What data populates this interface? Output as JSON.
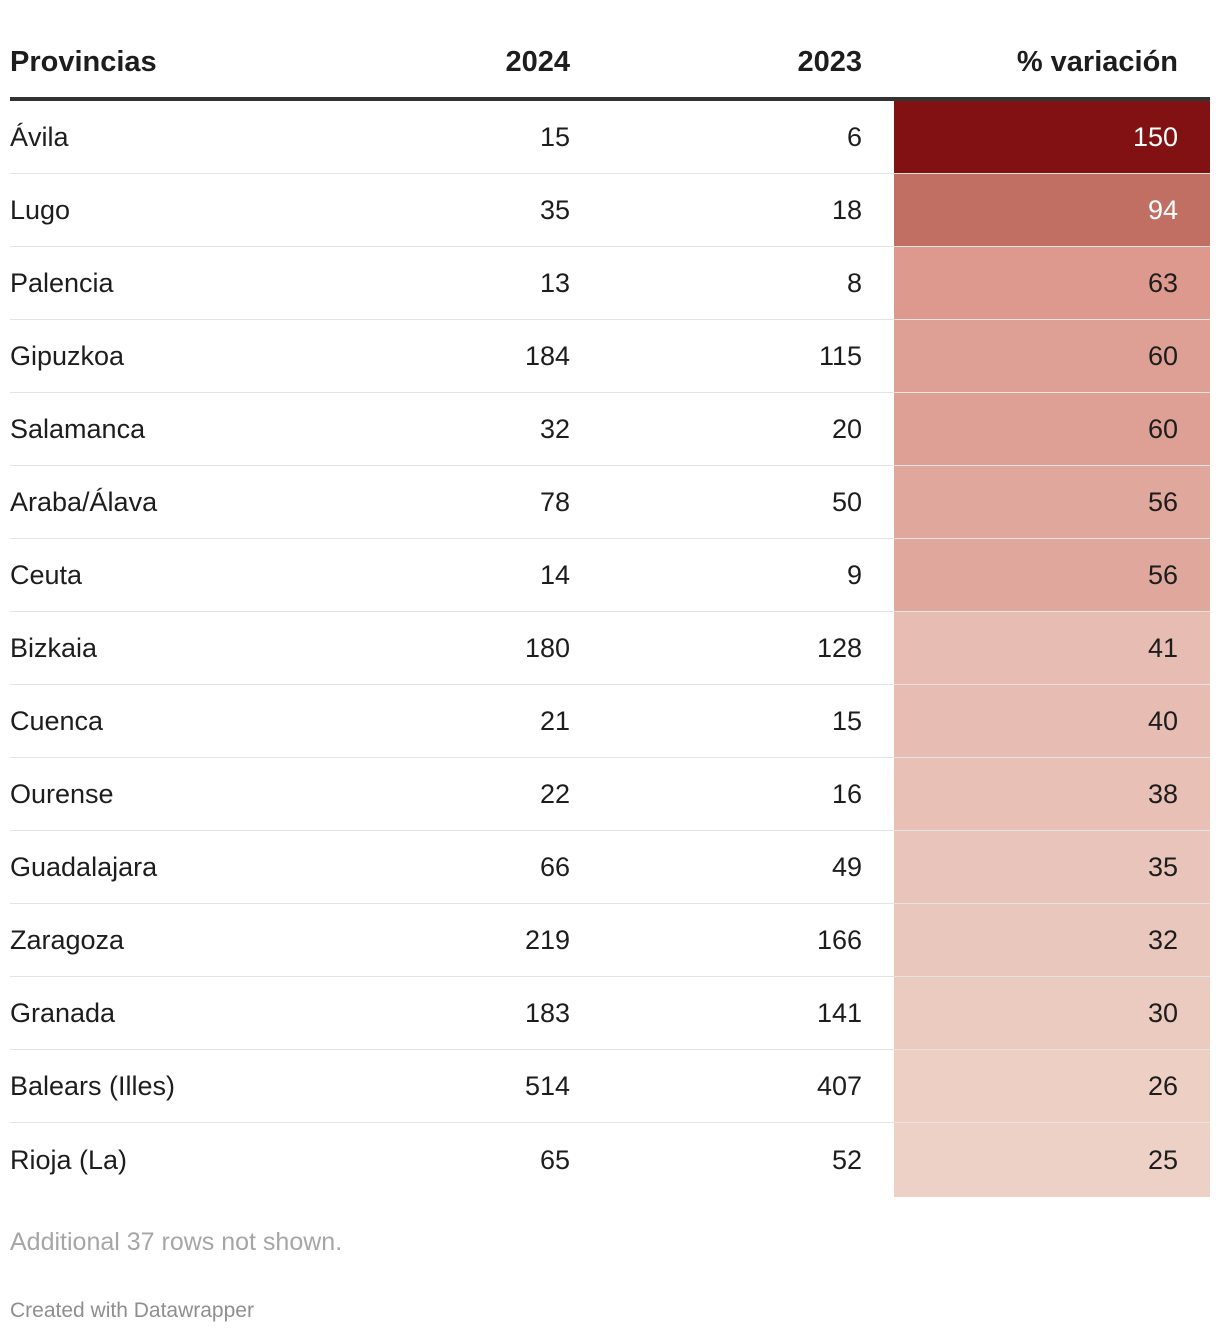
{
  "chart_data": {
    "type": "table",
    "columns": [
      "Provincias",
      "2024",
      "2023",
      "% variación"
    ],
    "rows": [
      {
        "name": "Ávila",
        "y2024": "15",
        "y2023": "6",
        "var": "150",
        "color": "#811112",
        "text_color": "#ffffff"
      },
      {
        "name": "Lugo",
        "y2024": "35",
        "y2023": "18",
        "var": "94",
        "color": "#c16f62",
        "text_color": "#ffffff"
      },
      {
        "name": "Palencia",
        "y2024": "13",
        "y2023": "8",
        "var": "63",
        "color": "#dd998e",
        "text_color": "#1d1d1d"
      },
      {
        "name": "Gipuzkoa",
        "y2024": "184",
        "y2023": "115",
        "var": "60",
        "color": "#de9f94",
        "text_color": "#1d1d1d"
      },
      {
        "name": "Salamanca",
        "y2024": "32",
        "y2023": "20",
        "var": "60",
        "color": "#de9f94",
        "text_color": "#1d1d1d"
      },
      {
        "name": "Araba/Álava",
        "y2024": "78",
        "y2023": "50",
        "var": "56",
        "color": "#e0a79c",
        "text_color": "#1d1d1d"
      },
      {
        "name": "Ceuta",
        "y2024": "14",
        "y2023": "9",
        "var": "56",
        "color": "#e0a79c",
        "text_color": "#1d1d1d"
      },
      {
        "name": "Bizkaia",
        "y2024": "180",
        "y2023": "128",
        "var": "41",
        "color": "#e7bcb2",
        "text_color": "#1d1d1d"
      },
      {
        "name": "Cuenca",
        "y2024": "21",
        "y2023": "15",
        "var": "40",
        "color": "#e7bdb3",
        "text_color": "#1d1d1d"
      },
      {
        "name": "Ourense",
        "y2024": "22",
        "y2023": "16",
        "var": "38",
        "color": "#e8c0b6",
        "text_color": "#1d1d1d"
      },
      {
        "name": "Guadalajara",
        "y2024": "66",
        "y2023": "49",
        "var": "35",
        "color": "#e9c4ba",
        "text_color": "#1d1d1d"
      },
      {
        "name": "Zaragoza",
        "y2024": "219",
        "y2023": "166",
        "var": "32",
        "color": "#eac7bd",
        "text_color": "#1d1d1d"
      },
      {
        "name": "Granada",
        "y2024": "183",
        "y2023": "141",
        "var": "30",
        "color": "#ebcac0",
        "text_color": "#1d1d1d"
      },
      {
        "name": "Balears (Illes)",
        "y2024": "514",
        "y2023": "407",
        "var": "26",
        "color": "#edcfc4",
        "text_color": "#1d1d1d"
      },
      {
        "name": "Rioja (La)",
        "y2024": "65",
        "y2023": "52",
        "var": "25",
        "color": "#eed1c6",
        "text_color": "#1d1d1d"
      }
    ]
  },
  "notes": "Additional 37 rows not shown.",
  "credit": "Created with Datawrapper"
}
